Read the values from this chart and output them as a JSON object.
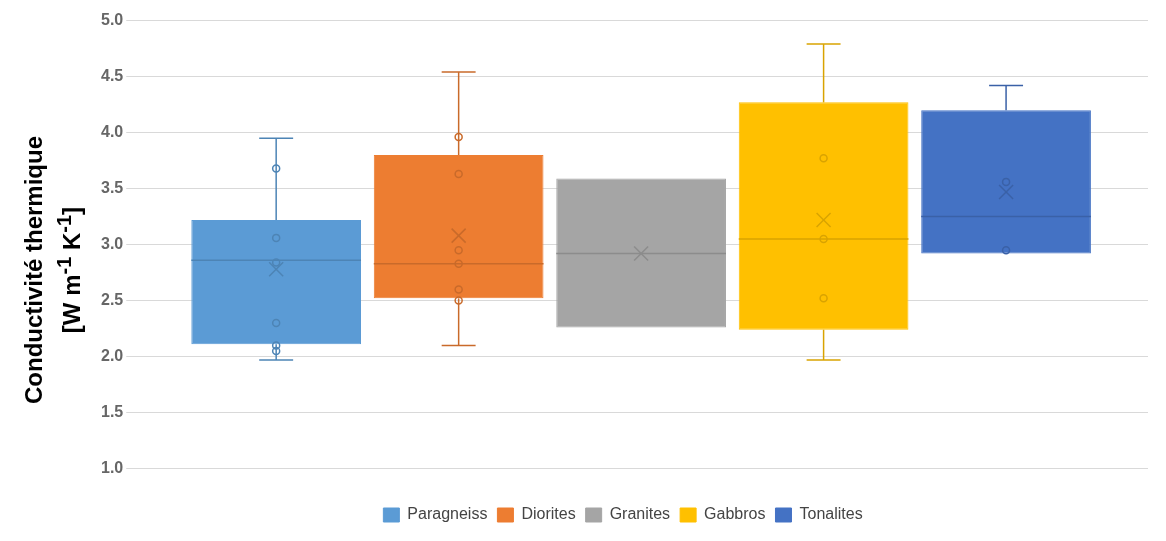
{
  "chart_data": {
    "type": "box",
    "ylabel": "Conductivité thermique\n[W m$^{-1}$ K$^{-1}$]",
    "categories": [
      null
    ],
    "ylim": [
      1,
      5
    ],
    "yticks": [
      {
        "value": 1,
        "label": "1.0"
      },
      {
        "value": 1.5,
        "label": "1.5"
      },
      {
        "value": 2,
        "label": "2.0"
      },
      {
        "value": 2.5,
        "label": "2.5"
      },
      {
        "value": 3,
        "label": "3.0"
      },
      {
        "value": 3.5,
        "label": "3.5"
      },
      {
        "value": 4,
        "label": "4.0"
      },
      {
        "value": 4.5,
        "label": "4.5"
      },
      {
        "value": 5,
        "label": "5.0"
      }
    ],
    "grid": "y",
    "legend": "bottom",
    "series": [
      {
        "name": "Paragneiss",
        "color": "#5b9bd5",
        "boxes": [
          {
            "low": 1.97,
            "q1": 2.11,
            "median": 2.86,
            "q3": 3.22,
            "high": 3.95,
            "mean": 2.78,
            "outliers": [
              3.68,
              3.06,
              2.84,
              2.3,
              2.1,
              2.05
            ]
          }
        ]
      },
      {
        "name": "Diorites",
        "color": "#ed7d31",
        "boxes": [
          {
            "low": 2.1,
            "q1": 2.52,
            "median": 2.83,
            "q3": 3.8,
            "high": 4.54,
            "mean": 3.08,
            "outliers": [
              3.96,
              3.63,
              2.95,
              2.83,
              2.6,
              2.5
            ]
          }
        ]
      },
      {
        "name": "Granites",
        "color": "#a5a5a5",
        "boxes": [
          {
            "low": 2.26,
            "q1": 2.26,
            "median": 2.92,
            "q3": 3.59,
            "high": 3.59,
            "mean": 2.92
          }
        ]
      },
      {
        "name": "Gabbros",
        "color": "#ffc000",
        "boxes": [
          {
            "low": 1.97,
            "q1": 2.24,
            "median": 3.05,
            "q3": 4.27,
            "high": 4.79,
            "mean": 3.22,
            "outliers": [
              3.77,
              3.05,
              2.52
            ]
          }
        ]
      },
      {
        "name": "Tonalites",
        "color": "#4472c4",
        "boxes": [
          {
            "low": 2.92,
            "q1": 2.92,
            "median": 3.25,
            "q3": 4.2,
            "high": 4.42,
            "mean": 3.47,
            "outliers": [
              3.56,
              2.95
            ]
          }
        ]
      }
    ]
  }
}
